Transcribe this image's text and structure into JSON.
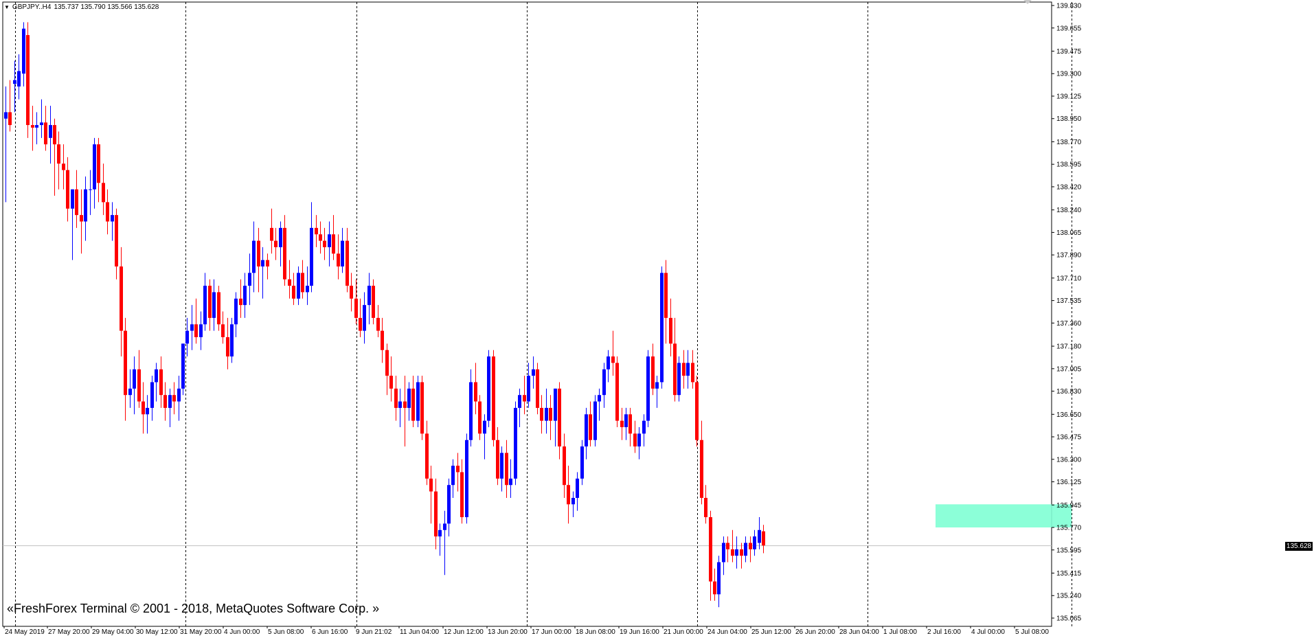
{
  "header": {
    "menu_icon": "triangle-down-icon",
    "symbol": "GBPJPY..H4",
    "ohlc": "135.737 135.790 135.566 135.628"
  },
  "footer": {
    "copyright": "«FreshForex Terminal © 2001 - 2018, MetaQuotes Software Corp. »"
  },
  "current_price": "135.628",
  "colors": {
    "bull": "#0000FF",
    "bear": "#FF0000",
    "grid": "#000000",
    "zone": "#7FFFD4",
    "background": "#FFFFFF"
  },
  "chart_data": {
    "type": "candlestick",
    "symbol": "GBPJPY",
    "timeframe": "H4",
    "price_ticks": [
      "139.830",
      "139.655",
      "139.475",
      "139.300",
      "139.125",
      "138.950",
      "138.770",
      "138.595",
      "138.420",
      "138.240",
      "138.065",
      "137.890",
      "137.710",
      "137.535",
      "137.360",
      "137.180",
      "137.005",
      "136.830",
      "136.650",
      "136.475",
      "136.300",
      "136.125",
      "135.945",
      "135.770",
      "135.595",
      "135.415",
      "135.240",
      "135.065"
    ],
    "time_ticks": [
      "24 May 2019",
      "27 May 20:00",
      "29 May 04:00",
      "30 May 12:00",
      "31 May 20:00",
      "4 Jun 00:00",
      "5 Jun 08:00",
      "6 Jun 16:00",
      "9 Jun 21:02",
      "11 Jun 04:00",
      "12 Jun 12:00",
      "13 Jun 20:00",
      "17 Jun 00:00",
      "18 Jun 08:00",
      "19 Jun 16:00",
      "21 Jun 00:00",
      "24 Jun 04:00",
      "25 Jun 12:00",
      "26 Jun 20:00",
      "28 Jun 04:00",
      "1 Jul 08:00",
      "2 Jul 16:00",
      "4 Jul 00:00",
      "5 Jul 08:00"
    ],
    "ylim": [
      135.065,
      139.83
    ],
    "grid": "vertical dashed separators",
    "zone": {
      "label": "",
      "y_range": [
        135.77,
        135.95
      ]
    },
    "candles": [
      [
        138.95,
        139.2,
        138.3,
        139.0
      ],
      [
        139.0,
        139.25,
        138.85,
        138.9
      ],
      [
        139.22,
        139.4,
        139.0,
        139.25
      ],
      [
        139.2,
        139.45,
        139.1,
        139.32
      ],
      [
        139.3,
        139.7,
        139.2,
        139.65
      ],
      [
        139.6,
        139.7,
        138.8,
        138.9
      ],
      [
        138.9,
        139.05,
        138.7,
        138.88
      ],
      [
        138.88,
        139.0,
        138.75,
        138.9
      ],
      [
        138.9,
        139.1,
        138.8,
        138.92
      ],
      [
        138.92,
        139.05,
        138.7,
        138.75
      ],
      [
        138.8,
        139.05,
        138.6,
        138.9
      ],
      [
        138.9,
        138.95,
        138.35,
        138.75
      ],
      [
        138.75,
        138.85,
        138.4,
        138.6
      ],
      [
        138.6,
        138.75,
        138.4,
        138.55
      ],
      [
        138.55,
        138.65,
        138.15,
        138.25
      ],
      [
        138.25,
        138.4,
        137.85,
        138.4
      ],
      [
        138.4,
        138.55,
        138.1,
        138.2
      ],
      [
        138.2,
        138.4,
        137.9,
        138.15
      ],
      [
        138.15,
        138.5,
        138.0,
        138.4
      ],
      [
        138.4,
        138.55,
        138.2,
        138.4
      ],
      [
        138.4,
        138.8,
        138.25,
        138.75
      ],
      [
        138.75,
        138.8,
        138.3,
        138.45
      ],
      [
        138.45,
        138.6,
        138.2,
        138.3
      ],
      [
        138.3,
        138.4,
        138.05,
        138.15
      ],
      [
        138.15,
        138.3,
        138.0,
        138.2
      ],
      [
        138.2,
        138.25,
        137.7,
        137.8
      ],
      [
        137.8,
        137.95,
        137.1,
        137.3
      ],
      [
        137.3,
        137.4,
        136.6,
        136.8
      ],
      [
        136.8,
        137.0,
        136.7,
        136.85
      ],
      [
        136.85,
        137.1,
        136.65,
        137.0
      ],
      [
        137.0,
        137.15,
        136.7,
        136.75
      ],
      [
        136.75,
        136.9,
        136.5,
        136.65
      ],
      [
        136.65,
        136.8,
        136.5,
        136.7
      ],
      [
        136.7,
        136.95,
        136.6,
        136.9
      ],
      [
        136.9,
        137.05,
        136.75,
        137.0
      ],
      [
        137.0,
        137.1,
        136.7,
        136.8
      ],
      [
        136.8,
        136.9,
        136.6,
        136.7
      ],
      [
        136.7,
        136.85,
        136.55,
        136.8
      ],
      [
        136.8,
        136.9,
        136.65,
        136.75
      ],
      [
        136.75,
        136.95,
        136.6,
        136.85
      ],
      [
        136.85,
        137.2,
        136.8,
        137.2
      ],
      [
        137.2,
        137.4,
        137.1,
        137.3
      ],
      [
        137.3,
        137.5,
        137.15,
        137.35
      ],
      [
        137.35,
        137.55,
        137.2,
        137.25
      ],
      [
        137.25,
        137.45,
        137.15,
        137.35
      ],
      [
        137.35,
        137.75,
        137.3,
        137.65
      ],
      [
        137.65,
        137.7,
        137.3,
        137.4
      ],
      [
        137.4,
        137.7,
        137.3,
        137.6
      ],
      [
        137.6,
        137.65,
        137.3,
        137.35
      ],
      [
        137.35,
        137.45,
        137.2,
        137.25
      ],
      [
        137.25,
        137.4,
        137.0,
        137.1
      ],
      [
        137.1,
        137.4,
        137.05,
        137.35
      ],
      [
        137.35,
        137.6,
        137.25,
        137.55
      ],
      [
        137.55,
        137.7,
        137.4,
        137.5
      ],
      [
        137.5,
        137.75,
        137.4,
        137.65
      ],
      [
        137.65,
        137.9,
        137.5,
        137.75
      ],
      [
        137.75,
        138.15,
        137.6,
        138.0
      ],
      [
        138.0,
        138.1,
        137.6,
        137.8
      ],
      [
        137.8,
        137.95,
        137.55,
        137.85
      ],
      [
        137.85,
        137.9,
        137.7,
        137.8
      ],
      [
        138.1,
        138.25,
        137.9,
        138.0
      ],
      [
        138.0,
        138.1,
        137.85,
        137.95
      ],
      [
        137.95,
        138.15,
        137.8,
        138.1
      ],
      [
        138.1,
        138.2,
        137.65,
        137.7
      ],
      [
        137.7,
        137.85,
        137.55,
        137.65
      ],
      [
        137.65,
        137.75,
        137.5,
        137.55
      ],
      [
        137.55,
        137.8,
        137.5,
        137.75
      ],
      [
        137.75,
        137.85,
        137.55,
        137.6
      ],
      [
        137.6,
        137.8,
        137.5,
        137.65
      ],
      [
        137.65,
        138.3,
        137.6,
        138.1
      ],
      [
        138.1,
        138.2,
        137.95,
        138.05
      ],
      [
        138.05,
        138.15,
        137.9,
        138.0
      ],
      [
        138.0,
        138.1,
        137.85,
        137.95
      ],
      [
        137.95,
        138.15,
        137.8,
        138.05
      ],
      [
        138.05,
        138.2,
        137.85,
        137.9
      ],
      [
        137.9,
        138.05,
        137.7,
        137.8
      ],
      [
        137.8,
        138.1,
        137.75,
        138.0
      ],
      [
        138.0,
        138.1,
        137.6,
        137.65
      ],
      [
        137.65,
        137.75,
        137.45,
        137.55
      ],
      [
        137.55,
        137.7,
        137.35,
        137.4
      ],
      [
        137.4,
        137.55,
        137.25,
        137.3
      ],
      [
        137.3,
        137.6,
        137.2,
        137.5
      ],
      [
        137.5,
        137.75,
        137.35,
        137.65
      ],
      [
        137.65,
        137.7,
        137.35,
        137.4
      ],
      [
        137.4,
        137.5,
        137.25,
        137.3
      ],
      [
        137.3,
        137.4,
        137.05,
        137.15
      ],
      [
        137.15,
        137.2,
        136.8,
        136.95
      ],
      [
        136.95,
        137.1,
        136.75,
        136.85
      ],
      [
        136.85,
        136.95,
        136.6,
        136.7
      ],
      [
        136.7,
        136.85,
        136.55,
        136.75
      ],
      [
        136.75,
        136.95,
        136.4,
        136.7
      ],
      [
        136.7,
        136.9,
        136.6,
        136.85
      ],
      [
        136.85,
        136.95,
        136.55,
        136.6
      ],
      [
        136.6,
        136.95,
        136.55,
        136.9
      ],
      [
        136.9,
        136.95,
        136.45,
        136.5
      ],
      [
        136.5,
        136.6,
        136.1,
        136.15
      ],
      [
        136.15,
        136.25,
        135.8,
        136.05
      ],
      [
        136.05,
        136.15,
        135.6,
        135.7
      ],
      [
        135.7,
        135.8,
        135.55,
        135.75
      ],
      [
        135.75,
        135.9,
        135.4,
        135.8
      ],
      [
        135.8,
        136.15,
        135.7,
        136.1
      ],
      [
        136.1,
        136.3,
        136.0,
        136.25
      ],
      [
        136.25,
        136.35,
        136.05,
        136.2
      ],
      [
        136.2,
        136.3,
        135.8,
        135.85
      ],
      [
        135.85,
        136.5,
        135.8,
        136.45
      ],
      [
        136.45,
        137.0,
        136.4,
        136.9
      ],
      [
        136.9,
        137.05,
        136.65,
        136.75
      ],
      [
        136.75,
        136.8,
        136.45,
        136.5
      ],
      [
        136.5,
        136.65,
        136.3,
        136.6
      ],
      [
        136.6,
        137.15,
        136.55,
        137.1
      ],
      [
        137.1,
        137.15,
        136.4,
        136.45
      ],
      [
        136.45,
        136.55,
        136.1,
        136.15
      ],
      [
        136.15,
        136.4,
        136.05,
        136.35
      ],
      [
        136.35,
        136.45,
        136.0,
        136.1
      ],
      [
        136.1,
        136.3,
        136.0,
        136.15
      ],
      [
        136.15,
        136.75,
        136.1,
        136.7
      ],
      [
        136.7,
        136.85,
        136.55,
        136.8
      ],
      [
        136.8,
        136.95,
        136.65,
        136.75
      ],
      [
        136.75,
        137.05,
        136.7,
        136.95
      ],
      [
        136.95,
        137.1,
        136.85,
        137.0
      ],
      [
        137.0,
        137.05,
        136.65,
        136.7
      ],
      [
        136.7,
        136.8,
        136.5,
        136.6
      ],
      [
        136.6,
        136.85,
        136.5,
        136.7
      ],
      [
        136.7,
        136.8,
        136.45,
        136.6
      ],
      [
        136.6,
        136.85,
        136.4,
        136.85
      ],
      [
        136.85,
        136.9,
        136.3,
        136.4
      ],
      [
        136.4,
        136.5,
        136.0,
        136.1
      ],
      [
        136.1,
        136.25,
        135.8,
        135.95
      ],
      [
        135.95,
        136.05,
        135.85,
        136.0
      ],
      [
        136.0,
        136.2,
        135.9,
        136.15
      ],
      [
        136.15,
        136.45,
        136.1,
        136.4
      ],
      [
        136.4,
        136.7,
        136.3,
        136.65
      ],
      [
        136.65,
        136.75,
        136.4,
        136.45
      ],
      [
        136.45,
        136.8,
        136.4,
        136.75
      ],
      [
        136.75,
        136.85,
        136.6,
        136.8
      ],
      [
        136.8,
        137.05,
        136.7,
        137.0
      ],
      [
        137.0,
        137.15,
        136.9,
        137.1
      ],
      [
        137.1,
        137.3,
        136.95,
        137.05
      ],
      [
        137.05,
        137.1,
        136.55,
        136.6
      ],
      [
        136.6,
        136.7,
        136.45,
        136.55
      ],
      [
        136.55,
        136.7,
        136.45,
        136.65
      ],
      [
        136.65,
        136.7,
        136.4,
        136.5
      ],
      [
        136.5,
        136.6,
        136.35,
        136.4
      ],
      [
        136.4,
        136.55,
        136.3,
        136.5
      ],
      [
        136.5,
        136.65,
        136.4,
        136.6
      ],
      [
        136.6,
        137.15,
        136.55,
        137.1
      ],
      [
        137.1,
        137.2,
        136.8,
        136.85
      ],
      [
        136.85,
        136.95,
        136.7,
        136.9
      ],
      [
        136.9,
        137.8,
        136.85,
        137.75
      ],
      [
        137.75,
        137.85,
        137.2,
        137.4
      ],
      [
        137.4,
        137.55,
        137.1,
        137.2
      ],
      [
        137.2,
        137.4,
        136.75,
        136.8
      ],
      [
        136.8,
        137.1,
        136.75,
        137.05
      ],
      [
        137.05,
        137.15,
        136.85,
        136.95
      ],
      [
        136.95,
        137.15,
        136.85,
        137.05
      ],
      [
        137.05,
        137.15,
        136.85,
        136.9
      ],
      [
        136.9,
        136.95,
        136.4,
        136.45
      ],
      [
        136.45,
        136.6,
        135.95,
        136.0
      ],
      [
        136.0,
        136.1,
        135.8,
        135.85
      ],
      [
        135.85,
        135.9,
        135.2,
        135.35
      ],
      [
        135.35,
        135.45,
        135.2,
        135.25
      ],
      [
        135.25,
        135.55,
        135.15,
        135.5
      ],
      [
        135.5,
        135.7,
        135.4,
        135.65
      ],
      [
        135.65,
        135.7,
        135.5,
        135.6
      ],
      [
        135.6,
        135.75,
        135.5,
        135.55
      ],
      [
        135.55,
        135.7,
        135.45,
        135.6
      ],
      [
        135.6,
        135.65,
        135.45,
        135.55
      ],
      [
        135.55,
        135.7,
        135.5,
        135.65
      ],
      [
        135.65,
        135.7,
        135.5,
        135.6
      ],
      [
        135.6,
        135.75,
        135.55,
        135.7
      ],
      [
        135.65,
        135.85,
        135.6,
        135.75
      ],
      [
        135.74,
        135.79,
        135.57,
        135.63
      ]
    ]
  }
}
